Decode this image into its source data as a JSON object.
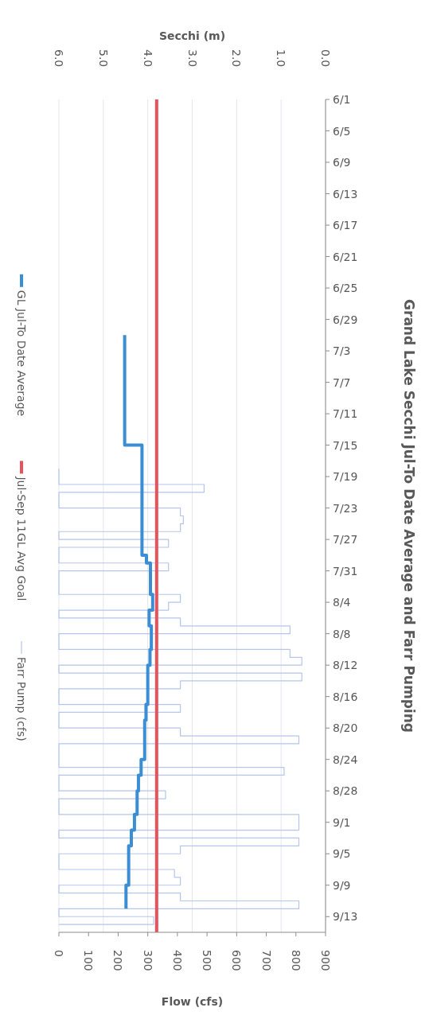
{
  "chart_data": {
    "type": "step",
    "orientation": "horizontal",
    "title": "Grand Lake Secchi Jul-To Date Average and Farr Pumping",
    "xlabel": "Flow (cfs)",
    "x2label": "Secchi (m)",
    "ylim": [
      "--09-15",
      "--06-01"
    ],
    "yticks": [
      {
        "value": "--06-01",
        "label": "6/1"
      },
      {
        "value": "--06-05",
        "label": "6/5"
      },
      {
        "value": "--06-09",
        "label": "6/9"
      },
      {
        "value": "--06-13",
        "label": "6/13"
      },
      {
        "value": "--06-17",
        "label": "6/17"
      },
      {
        "value": "--06-21",
        "label": "6/21"
      },
      {
        "value": "--06-25",
        "label": "6/25"
      },
      {
        "value": "--06-29",
        "label": "6/29"
      },
      {
        "value": "--07-03",
        "label": "7/3"
      },
      {
        "value": "--07-07",
        "label": "7/7"
      },
      {
        "value": "--07-11",
        "label": "7/11"
      },
      {
        "value": "--07-15",
        "label": "7/15"
      },
      {
        "value": "--07-19",
        "label": "7/19"
      },
      {
        "value": "--07-23",
        "label": "7/23"
      },
      {
        "value": "--07-27",
        "label": "7/27"
      },
      {
        "value": "--07-31",
        "label": "7/31"
      },
      {
        "value": "--08-04",
        "label": "8/4"
      },
      {
        "value": "--08-08",
        "label": "8/8"
      },
      {
        "value": "--08-12",
        "label": "8/12"
      },
      {
        "value": "--08-16",
        "label": "8/16"
      },
      {
        "value": "--08-20",
        "label": "8/20"
      },
      {
        "value": "--08-24",
        "label": "8/24"
      },
      {
        "value": "--08-28",
        "label": "8/28"
      },
      {
        "value": "--09-01",
        "label": "9/1"
      },
      {
        "value": "--09-05",
        "label": "9/5"
      },
      {
        "value": "--09-09",
        "label": "9/9"
      },
      {
        "value": "--09-13",
        "label": "9/13"
      }
    ],
    "x2lim": [
      6,
      0
    ],
    "x2ticks": [
      {
        "value": 6,
        "label": "6.0"
      },
      {
        "value": 5,
        "label": "5.0"
      },
      {
        "value": 4,
        "label": "4.0"
      },
      {
        "value": 3,
        "label": "3.0"
      },
      {
        "value": 2,
        "label": "2.0"
      },
      {
        "value": 1,
        "label": "1.0"
      },
      {
        "value": 0,
        "label": "0.0"
      }
    ],
    "xlim": [
      0,
      900
    ],
    "xticks": [
      0,
      100,
      200,
      300,
      400,
      500,
      600,
      700,
      800,
      900
    ],
    "grid": "x",
    "legend": "left",
    "series": [
      {
        "name": "GL Jul-To Date Average",
        "axis": "x2",
        "color": "#3b8ed3",
        "x": [
          "--07-01",
          "--07-15",
          "--07-29",
          "--07-30",
          "--08-03",
          "--08-05",
          "--08-07",
          "--08-10",
          "--08-12",
          "--08-17",
          "--08-19",
          "--08-24",
          "--08-26",
          "--08-28",
          "--08-31",
          "--09-02",
          "--09-04",
          "--09-09",
          "--09-12"
        ],
        "values": [
          4.52,
          4.13,
          4.03,
          3.94,
          3.89,
          3.97,
          3.92,
          3.95,
          4.0,
          4.04,
          4.07,
          4.15,
          4.21,
          4.24,
          4.3,
          4.37,
          4.43,
          4.49,
          4.49
        ]
      },
      {
        "name": "Jul-Sep 11GL Avg Goal",
        "type": "line",
        "axis": "x2",
        "color": "#e8525c",
        "x": [
          "--06-01",
          "--09-15"
        ],
        "values": [
          3.8,
          3.8
        ]
      },
      {
        "name": "Farr Pump (cfs)",
        "color": "#b4c6ec",
        "x": [
          "--07-18",
          "--07-19",
          "--07-20",
          "--07-21",
          "--07-22",
          "--07-23",
          "--07-24",
          "--07-25",
          "--07-26",
          "--07-27",
          "--07-28",
          "--07-29",
          "--07-30",
          "--07-31",
          "--08-01",
          "--08-02",
          "--08-03",
          "--08-04",
          "--08-05",
          "--08-06",
          "--08-07",
          "--08-08",
          "--08-09",
          "--08-10",
          "--08-11",
          "--08-12",
          "--08-13",
          "--08-14",
          "--08-15",
          "--08-16",
          "--08-17",
          "--08-18",
          "--08-19",
          "--08-20",
          "--08-21",
          "--08-22",
          "--08-23",
          "--08-24",
          "--08-25",
          "--08-26",
          "--08-27",
          "--08-28",
          "--08-29",
          "--08-30",
          "--08-31",
          "--09-01",
          "--09-02",
          "--09-03",
          "--09-04",
          "--09-05",
          "--09-06",
          "--09-07",
          "--09-08",
          "--09-09",
          "--09-10",
          "--09-11",
          "--09-12",
          "--09-13",
          "--09-14"
        ],
        "values": [
          0,
          0,
          490,
          0,
          0,
          410,
          420,
          410,
          0,
          370,
          0,
          0,
          370,
          0,
          0,
          0,
          410,
          370,
          0,
          410,
          780,
          0,
          0,
          780,
          820,
          0,
          820,
          410,
          0,
          0,
          410,
          0,
          0,
          410,
          810,
          0,
          0,
          0,
          760,
          0,
          0,
          360,
          0,
          0,
          810,
          810,
          0,
          810,
          410,
          0,
          0,
          390,
          410,
          0,
          410,
          810,
          0,
          320,
          0
        ]
      }
    ]
  }
}
